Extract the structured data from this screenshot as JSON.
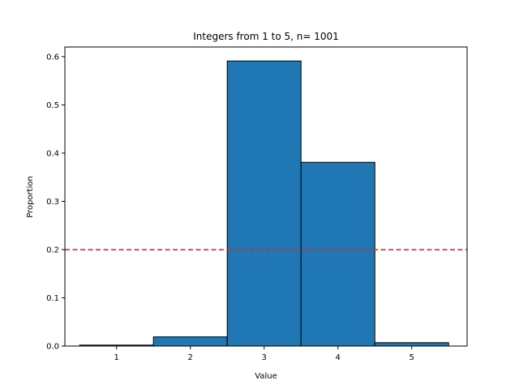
{
  "chart_data": {
    "type": "bar",
    "title": "Integers from 1 to 5, n= 1001",
    "xlabel": "Value",
    "ylabel": "Proportion",
    "categories": [
      "1",
      "2",
      "3",
      "4",
      "5"
    ],
    "x": [
      1,
      2,
      3,
      4,
      5
    ],
    "values": [
      0.002,
      0.019,
      0.591,
      0.381,
      0.007
    ],
    "xlim": [
      0.3,
      5.75
    ],
    "ylim": [
      0,
      0.62
    ],
    "yticks": [
      0.0,
      0.1,
      0.2,
      0.3,
      0.4,
      0.5,
      0.6
    ],
    "ytick_labels": [
      "0.0",
      "0.1",
      "0.2",
      "0.3",
      "0.4",
      "0.5",
      "0.6"
    ],
    "xtick_labels": [
      "1",
      "2",
      "3",
      "4",
      "5"
    ],
    "reference_line": {
      "y": 0.2,
      "style": "dashed",
      "color": "#d62728"
    },
    "bar_color": "#1f77b4",
    "bar_edge_color": "#000000",
    "grid": false,
    "legend": "none"
  }
}
